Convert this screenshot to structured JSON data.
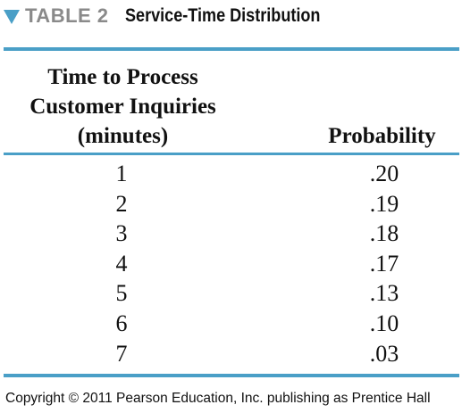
{
  "caption": {
    "label": "TABLE 2",
    "title": "Service-Time Distribution",
    "accent_color": "#4a9fc7",
    "marker_icon": "triangle-down-icon"
  },
  "table": {
    "headers": {
      "time": [
        "Time to Process",
        "Customer Inquiries",
        "(minutes)"
      ],
      "probability": "Probability"
    },
    "rows": [
      {
        "time": "1",
        "probability": ".20"
      },
      {
        "time": "2",
        "probability": ".19"
      },
      {
        "time": "3",
        "probability": ".18"
      },
      {
        "time": "4",
        "probability": ".17"
      },
      {
        "time": "5",
        "probability": ".13"
      },
      {
        "time": "6",
        "probability": ".10"
      },
      {
        "time": "7",
        "probability": ".03"
      }
    ]
  },
  "footer": {
    "copyright": "Copyright © 2011 Pearson Education, Inc. publishing as Prentice Hall"
  }
}
